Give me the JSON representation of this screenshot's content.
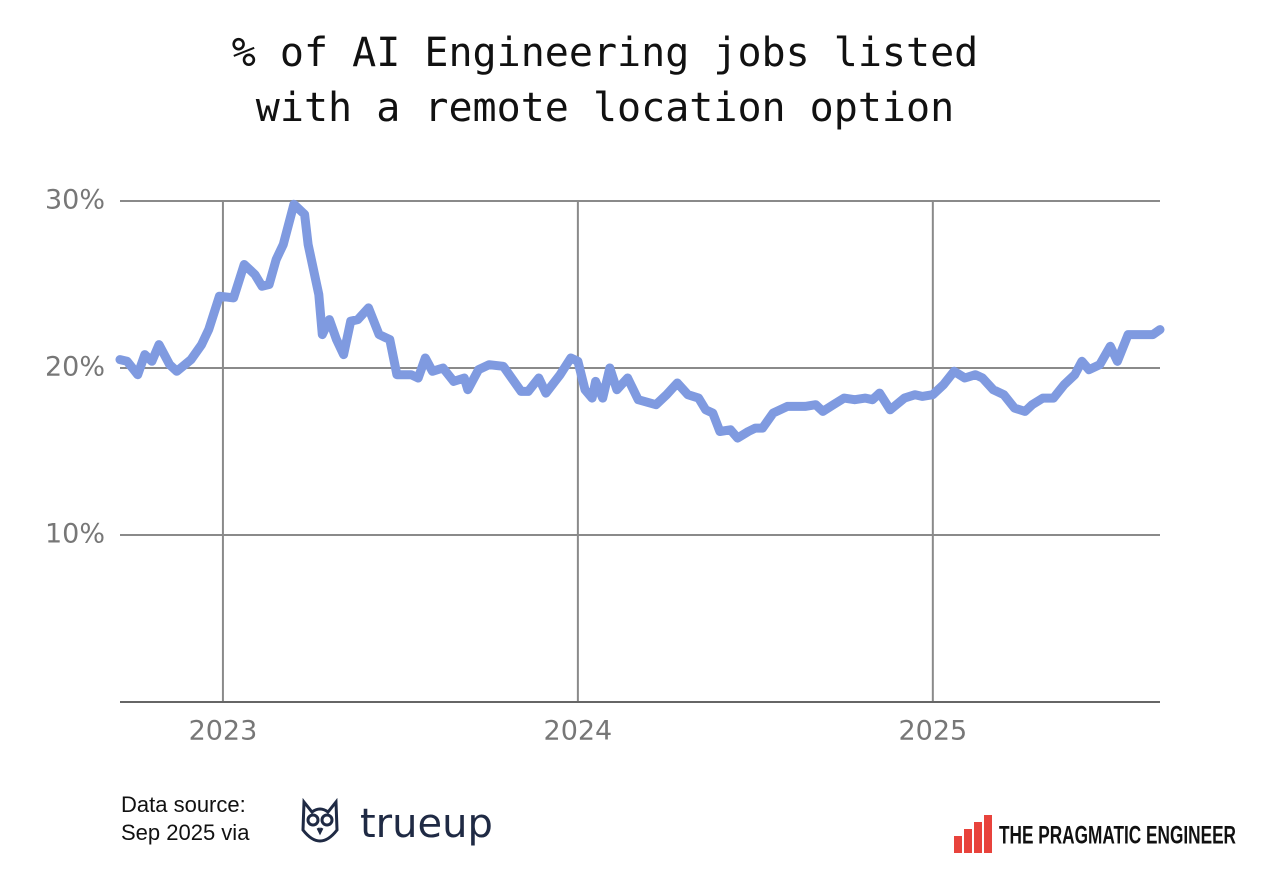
{
  "chart_data": {
    "type": "line",
    "title": [
      "% of AI Engineering jobs listed",
      "with a remote location option"
    ],
    "x": [
      2022.71,
      2022.73,
      2022.76,
      2022.78,
      2022.8,
      2022.82,
      2022.85,
      2022.87,
      2022.91,
      2022.94,
      2022.96,
      2022.99,
      2023.03,
      2023.06,
      2023.09,
      2023.11,
      2023.13,
      2023.15,
      2023.17,
      2023.2,
      2023.23,
      2023.24,
      2023.27,
      2023.28,
      2023.3,
      2023.32,
      2023.34,
      2023.36,
      2023.38,
      2023.41,
      2023.44,
      2023.47,
      2023.49,
      2023.53,
      2023.55,
      2023.57,
      2023.59,
      2023.62,
      2023.65,
      2023.68,
      2023.69,
      2023.72,
      2023.75,
      2023.79,
      2023.84,
      2023.86,
      2023.89,
      2023.91,
      2023.95,
      2023.98,
      2024.0,
      2024.02,
      2024.04,
      2024.05,
      2024.07,
      2024.09,
      2024.11,
      2024.14,
      2024.17,
      2024.22,
      2024.25,
      2024.28,
      2024.31,
      2024.34,
      2024.36,
      2024.38,
      2024.4,
      2024.43,
      2024.45,
      2024.48,
      2024.5,
      2024.52,
      2024.55,
      2024.59,
      2024.64,
      2024.67,
      2024.69,
      2024.72,
      2024.75,
      2024.78,
      2024.81,
      2024.83,
      2024.85,
      2024.88,
      2024.92,
      2024.95,
      2024.97,
      2025.0,
      2025.03,
      2025.06,
      2025.09,
      2025.12,
      2025.14,
      2025.17,
      2025.2,
      2025.23,
      2025.26,
      2025.28,
      2025.31,
      2025.34,
      2025.37,
      2025.4,
      2025.42,
      2025.44,
      2025.47,
      2025.5,
      2025.52,
      2025.55,
      2025.59,
      2025.62,
      2025.64
    ],
    "values": [
      20.5,
      20.4,
      19.6,
      20.8,
      20.4,
      21.4,
      20.2,
      19.8,
      20.5,
      21.4,
      22.3,
      24.3,
      24.2,
      26.2,
      25.6,
      24.9,
      25,
      26.5,
      27.4,
      29.8,
      29.2,
      27.4,
      24.4,
      22,
      22.9,
      21.7,
      20.8,
      22.8,
      22.9,
      23.6,
      22,
      21.7,
      19.6,
      19.6,
      19.4,
      20.6,
      19.8,
      20,
      19.2,
      19.4,
      18.7,
      19.9,
      20.2,
      20.1,
      18.6,
      18.6,
      19.4,
      18.5,
      19.6,
      20.6,
      20.4,
      18.7,
      18.2,
      19.2,
      18.2,
      20,
      18.7,
      19.4,
      18.1,
      17.8,
      18.4,
      19.1,
      18.4,
      18.2,
      17.5,
      17.3,
      16.2,
      16.3,
      15.8,
      16.2,
      16.4,
      16.4,
      17.3,
      17.7,
      17.7,
      17.8,
      17.4,
      17.8,
      18.2,
      18.1,
      18.2,
      18.1,
      18.5,
      17.5,
      18.2,
      18.4,
      18.3,
      18.4,
      19,
      19.8,
      19.4,
      19.6,
      19.4,
      18.7,
      18.4,
      17.6,
      17.4,
      17.8,
      18.2,
      18.2,
      19,
      19.6,
      20.4,
      19.9,
      20.2,
      21.3,
      20.4,
      22,
      22,
      22,
      22.3
    ],
    "color": "#7f9ae0",
    "xlim": [
      2022.71,
      2025.64
    ],
    "xticks": [
      2023,
      2024,
      2025
    ],
    "ylim": [
      0,
      30
    ],
    "yticks": [
      {
        "value": 10,
        "label": "10%"
      },
      {
        "value": 20,
        "label": "20%"
      },
      {
        "value": 30,
        "label": "30%"
      }
    ],
    "grid": true
  },
  "source": [
    "Data source:",
    "Sep 2025 via"
  ],
  "source_logo": "trueup",
  "brand": "THE PRAGMATIC ENGINEER"
}
